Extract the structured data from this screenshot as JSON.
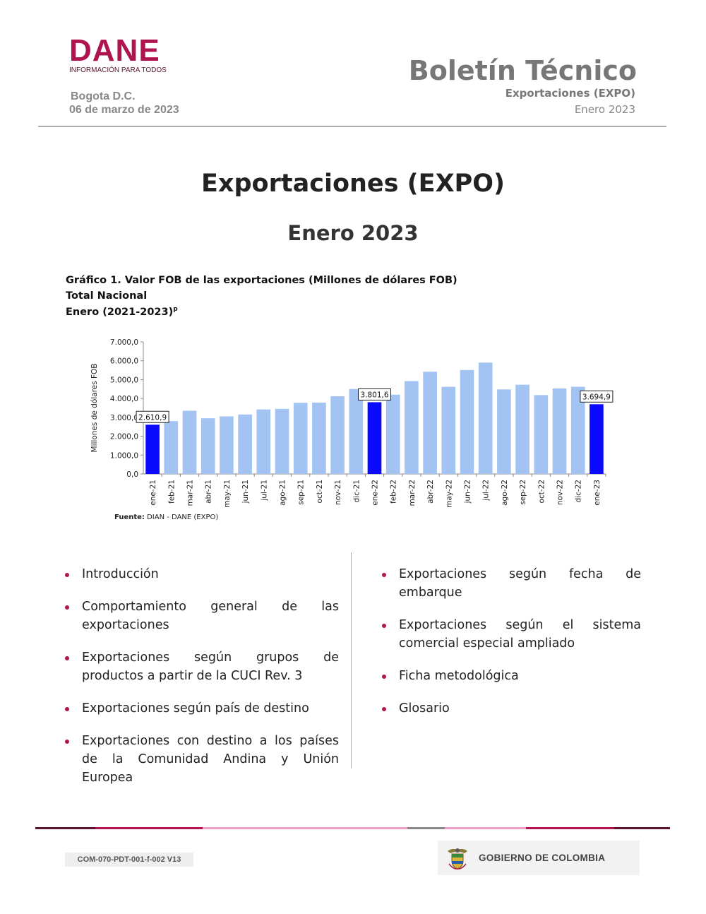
{
  "header": {
    "logo_word": "DANE",
    "logo_tagline": "INFORMACIÓN PARA TODOS",
    "city": "Bogota D.C.",
    "date": "06 de marzo de 2023",
    "doc_type": "Boletín Técnico",
    "doc_subject": "Exportaciones (EXPO)",
    "doc_period": "Enero 2023"
  },
  "title": {
    "main": "Exportaciones (EXPO)",
    "sub": "Enero 2023"
  },
  "chart_caption": {
    "line1": "Gráfico 1. Valor FOB de las exportaciones (Millones de dólares FOB)",
    "line2": "Total Nacional",
    "line3_text": "Enero (2021-2023)",
    "line3_sup": "p"
  },
  "chart_data": {
    "type": "bar",
    "ylabel": "Millones de dólares FOB",
    "ylim": [
      0,
      7000
    ],
    "yticks": [
      0,
      1000,
      2000,
      3000,
      4000,
      5000,
      6000,
      7000
    ],
    "ytick_labels": [
      "0,0",
      "1.000,0",
      "2.000,0",
      "3.000,0",
      "4.000,0",
      "5.000,0",
      "6.000,0",
      "7.000,0"
    ],
    "categories": [
      "ene-21",
      "feb-21",
      "mar-21",
      "abr-21",
      "may-21",
      "jun-21",
      "jul-21",
      "ago-21",
      "sep-21",
      "oct-21",
      "nov-21",
      "dic-21",
      "ene-22",
      "feb-22",
      "mar-22",
      "abr-22",
      "may-22",
      "jun-22",
      "jul-22",
      "ago-22",
      "sep-22",
      "oct-22",
      "nov-22",
      "dic-22",
      "ene-23"
    ],
    "values": [
      2610.9,
      2800,
      3350,
      2950,
      3050,
      3150,
      3420,
      3450,
      3770,
      3780,
      4120,
      4500,
      3801.6,
      4200,
      4920,
      5420,
      4620,
      5510,
      5900,
      4480,
      4730,
      4180,
      4530,
      4620,
      3694.9
    ],
    "highlight_indices": [
      0,
      12,
      24
    ],
    "colors": {
      "base": "#a3c4f3",
      "highlight": "#0a0aff",
      "axis": "#888888"
    },
    "data_labels": [
      {
        "index": 0,
        "text": "2.610,9"
      },
      {
        "index": 12,
        "text": "3.801,6"
      },
      {
        "index": 24,
        "text": "3.694,9"
      }
    ],
    "grid": false
  },
  "source": {
    "label": "Fuente:",
    "text": "DIAN - DANE (EXPO)"
  },
  "contents": {
    "left": [
      "Introducción",
      "Comportamiento general de las exportaciones",
      "Exportaciones según grupos de productos a partir de la CUCI Rev. 3",
      "Exportaciones según país de destino",
      "Exportaciones con destino a los países de la Comunidad Andina y Unión Europea"
    ],
    "right": [
      "Exportaciones según fecha de embarque",
      "Exportaciones según el sistema comercial especial ampliado",
      "Ficha metodológica",
      "Glosario"
    ]
  },
  "footer": {
    "code": "COM-070-PDT-001-f-002 V13",
    "gov_text": "GOBIERNO DE COLOMBIA",
    "brand_colors": [
      "#5a1430",
      "#b0144f",
      "#f0a0c8",
      "#888888",
      "#b0144f"
    ]
  }
}
